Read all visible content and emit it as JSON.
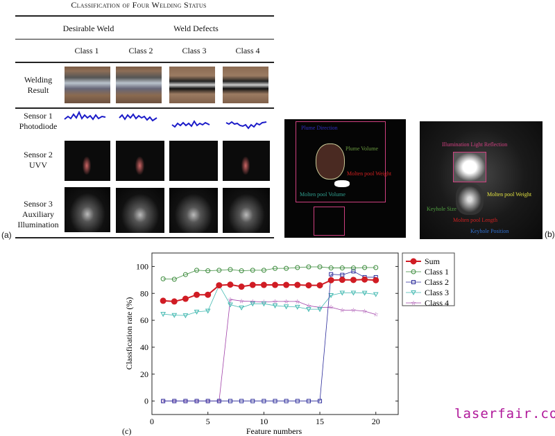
{
  "table": {
    "title": "Classification of Four Welding Status",
    "groups": [
      "Desirable Weld",
      "Weld Defects"
    ],
    "classes": [
      "Class 1",
      "Class 2",
      "Class 3",
      "Class 4"
    ],
    "rows": [
      {
        "label": [
          "Welding",
          "Result"
        ]
      },
      {
        "label": [
          "Sensor 1",
          "Photodiode"
        ]
      },
      {
        "label": [
          "Sensor 2",
          "UVV"
        ]
      },
      {
        "label": [
          "Sensor 3",
          "Auxiliary",
          "Illumination"
        ]
      }
    ],
    "panel_label": "(a)"
  },
  "panel_b": {
    "panel_label": "(b)",
    "left_annotations": [
      "Plume Direction",
      "Plume Volume",
      "Molten pool Weight",
      "Molten pool Volume"
    ],
    "right_annotations": [
      "Illumination Light Reflection",
      "Molten pool Weight",
      "Keyhole Size",
      "Molten pool Length",
      "Keyhole Position"
    ]
  },
  "chart_data": {
    "type": "line",
    "panel_label": "(c)",
    "xlabel": "Feature numbers",
    "ylabel": "Classfication rate    (%)",
    "xlim": [
      0,
      22
    ],
    "ylim": [
      -10,
      110
    ],
    "xticks": [
      0,
      5,
      10,
      15,
      20
    ],
    "yticks": [
      0,
      20,
      40,
      60,
      80,
      100
    ],
    "grid": false,
    "legend": "outside-top-right",
    "x": [
      1,
      2,
      3,
      4,
      5,
      6,
      7,
      8,
      9,
      10,
      11,
      12,
      13,
      14,
      15,
      16,
      17,
      18,
      19,
      20
    ],
    "series": [
      {
        "name": "Sum",
        "color": "#d01c24",
        "marker": "filled-circle",
        "values": [
          74.5,
          74,
          76,
          79,
          79,
          86,
          86.5,
          85,
          86.3,
          86.3,
          86.3,
          86.3,
          86.3,
          86,
          86,
          89.8,
          90.1,
          90,
          90.3,
          89.8
        ]
      },
      {
        "name": "Class 1",
        "color": "#3a8a3a",
        "marker": "circle",
        "values": [
          90.8,
          90.5,
          94,
          97.2,
          96.8,
          97.2,
          97.7,
          96.8,
          97.2,
          97.2,
          98.6,
          98.6,
          99.2,
          99.7,
          99.7,
          98.9,
          98.9,
          98.9,
          99.2,
          99.2
        ]
      },
      {
        "name": "Class 2",
        "color": "#2a2a9a",
        "marker": "square",
        "values": [
          0,
          0,
          0,
          0,
          0,
          0,
          0,
          0,
          0,
          0,
          0,
          0,
          0,
          0,
          0,
          94.2,
          93.7,
          96.4,
          92,
          92
        ]
      },
      {
        "name": "Class 3",
        "color": "#40b8b0",
        "marker": "triangle-down",
        "values": [
          64.6,
          63.8,
          63.6,
          66.3,
          67,
          86,
          71.6,
          69.4,
          72.3,
          72.3,
          70.9,
          70.2,
          69.9,
          68.2,
          68.2,
          78.6,
          80.4,
          80.4,
          80.3,
          79.3
        ]
      },
      {
        "name": "Class 4",
        "color": "#a040a8",
        "marker": "star",
        "values": [
          0,
          0,
          0,
          0,
          0,
          0,
          75.5,
          74.3,
          74,
          73.6,
          74,
          74,
          74,
          70.8,
          69.6,
          69.7,
          67.5,
          67.5,
          66.8,
          64.3
        ]
      }
    ]
  },
  "watermark": "laserfair.com"
}
